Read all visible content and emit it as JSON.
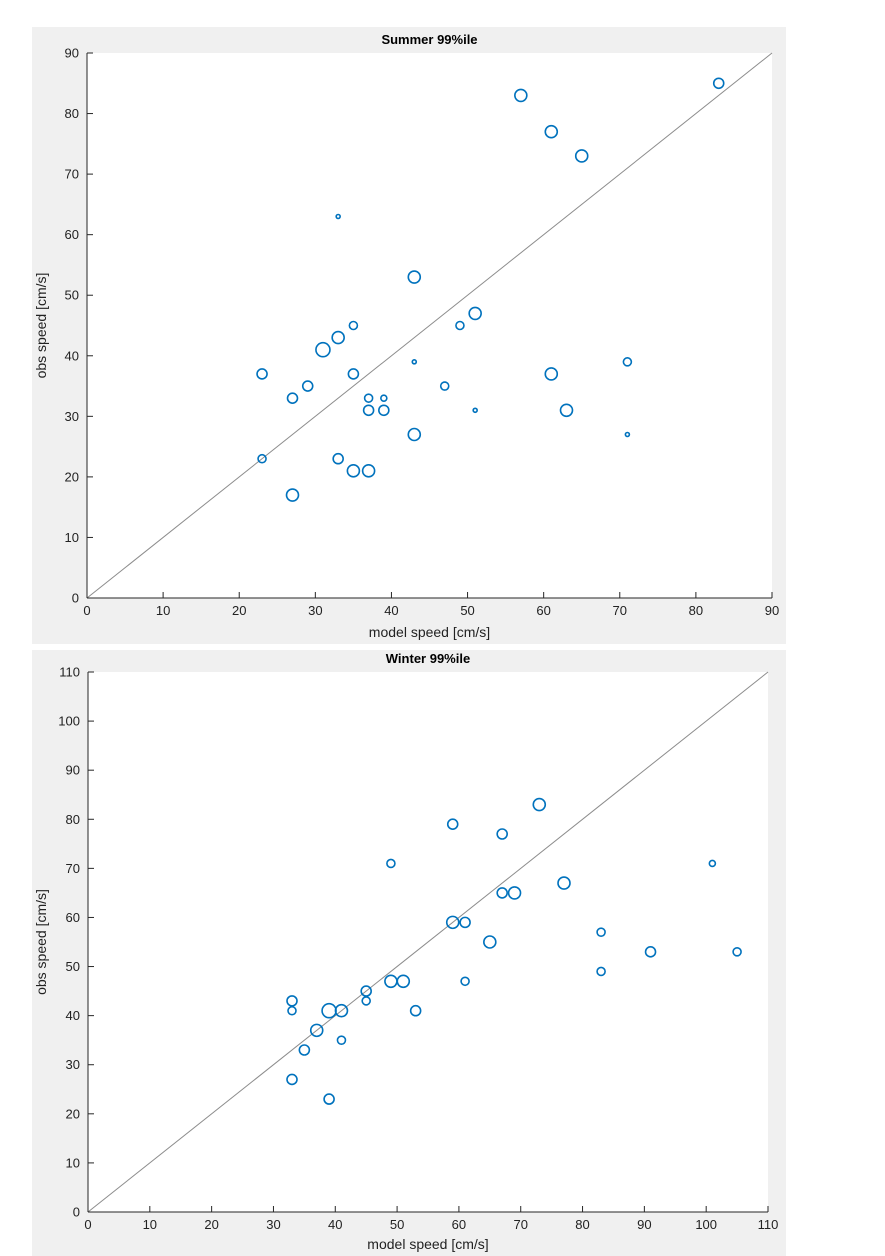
{
  "chart_data": [
    {
      "type": "scatter",
      "title": "Summer 99%ile",
      "xlabel": "model speed [cm/s]",
      "ylabel": "obs speed [cm/s]",
      "xlim": [
        0,
        90
      ],
      "ylim": [
        0,
        90
      ],
      "xticks": [
        0,
        10,
        20,
        30,
        40,
        50,
        60,
        70,
        80,
        90
      ],
      "yticks": [
        0,
        10,
        20,
        30,
        40,
        50,
        60,
        70,
        80,
        90
      ],
      "reference_line": "y = x",
      "marker_color": "#0072bd",
      "points": [
        {
          "x": 57,
          "y": 83,
          "size": 6
        },
        {
          "x": 83,
          "y": 85,
          "size": 5
        },
        {
          "x": 61,
          "y": 77,
          "size": 6
        },
        {
          "x": 65,
          "y": 73,
          "size": 6
        },
        {
          "x": 33,
          "y": 63,
          "size": 2
        },
        {
          "x": 43,
          "y": 53,
          "size": 6
        },
        {
          "x": 51,
          "y": 47,
          "size": 6
        },
        {
          "x": 35,
          "y": 45,
          "size": 4
        },
        {
          "x": 49,
          "y": 45,
          "size": 4
        },
        {
          "x": 31,
          "y": 41,
          "size": 7
        },
        {
          "x": 33,
          "y": 43,
          "size": 6
        },
        {
          "x": 43,
          "y": 39,
          "size": 2
        },
        {
          "x": 71,
          "y": 39,
          "size": 4
        },
        {
          "x": 23,
          "y": 37,
          "size": 5
        },
        {
          "x": 35,
          "y": 37,
          "size": 5
        },
        {
          "x": 61,
          "y": 37,
          "size": 6
        },
        {
          "x": 29,
          "y": 35,
          "size": 5
        },
        {
          "x": 47,
          "y": 35,
          "size": 4
        },
        {
          "x": 27,
          "y": 33,
          "size": 5
        },
        {
          "x": 37,
          "y": 33,
          "size": 4
        },
        {
          "x": 39,
          "y": 33,
          "size": 3
        },
        {
          "x": 37,
          "y": 31,
          "size": 5
        },
        {
          "x": 39,
          "y": 31,
          "size": 5
        },
        {
          "x": 51,
          "y": 31,
          "size": 2
        },
        {
          "x": 63,
          "y": 31,
          "size": 6
        },
        {
          "x": 71,
          "y": 27,
          "size": 2
        },
        {
          "x": 43,
          "y": 27,
          "size": 6
        },
        {
          "x": 23,
          "y": 23,
          "size": 4
        },
        {
          "x": 33,
          "y": 23,
          "size": 5
        },
        {
          "x": 35,
          "y": 21,
          "size": 6
        },
        {
          "x": 37,
          "y": 21,
          "size": 6
        },
        {
          "x": 27,
          "y": 17,
          "size": 6
        }
      ]
    },
    {
      "type": "scatter",
      "title": "Winter 99%ile",
      "xlabel": "model speed [cm/s]",
      "ylabel": "obs speed [cm/s]",
      "xlim": [
        0,
        110
      ],
      "ylim": [
        0,
        110
      ],
      "xticks": [
        0,
        10,
        20,
        30,
        40,
        50,
        60,
        70,
        80,
        90,
        100,
        110
      ],
      "yticks": [
        0,
        10,
        20,
        30,
        40,
        50,
        60,
        70,
        80,
        90,
        100,
        110
      ],
      "reference_line": "y = x",
      "marker_color": "#0072bd",
      "points": [
        {
          "x": 73,
          "y": 83,
          "size": 6
        },
        {
          "x": 59,
          "y": 79,
          "size": 5
        },
        {
          "x": 67,
          "y": 77,
          "size": 5
        },
        {
          "x": 49,
          "y": 71,
          "size": 4
        },
        {
          "x": 101,
          "y": 71,
          "size": 3
        },
        {
          "x": 77,
          "y": 67,
          "size": 6
        },
        {
          "x": 67,
          "y": 65,
          "size": 5
        },
        {
          "x": 69,
          "y": 65,
          "size": 6
        },
        {
          "x": 59,
          "y": 59,
          "size": 6
        },
        {
          "x": 61,
          "y": 59,
          "size": 5
        },
        {
          "x": 83,
          "y": 57,
          "size": 4
        },
        {
          "x": 65,
          "y": 55,
          "size": 6
        },
        {
          "x": 91,
          "y": 53,
          "size": 5
        },
        {
          "x": 105,
          "y": 53,
          "size": 4
        },
        {
          "x": 83,
          "y": 49,
          "size": 4
        },
        {
          "x": 49,
          "y": 47,
          "size": 6
        },
        {
          "x": 51,
          "y": 47,
          "size": 6
        },
        {
          "x": 61,
          "y": 47,
          "size": 4
        },
        {
          "x": 45,
          "y": 45,
          "size": 5
        },
        {
          "x": 33,
          "y": 43,
          "size": 5
        },
        {
          "x": 45,
          "y": 43,
          "size": 4
        },
        {
          "x": 33,
          "y": 41,
          "size": 4
        },
        {
          "x": 39,
          "y": 41,
          "size": 7
        },
        {
          "x": 41,
          "y": 41,
          "size": 6
        },
        {
          "x": 53,
          "y": 41,
          "size": 5
        },
        {
          "x": 37,
          "y": 37,
          "size": 6
        },
        {
          "x": 41,
          "y": 35,
          "size": 4
        },
        {
          "x": 35,
          "y": 33,
          "size": 5
        },
        {
          "x": 33,
          "y": 27,
          "size": 5
        },
        {
          "x": 39,
          "y": 23,
          "size": 5
        }
      ]
    }
  ]
}
